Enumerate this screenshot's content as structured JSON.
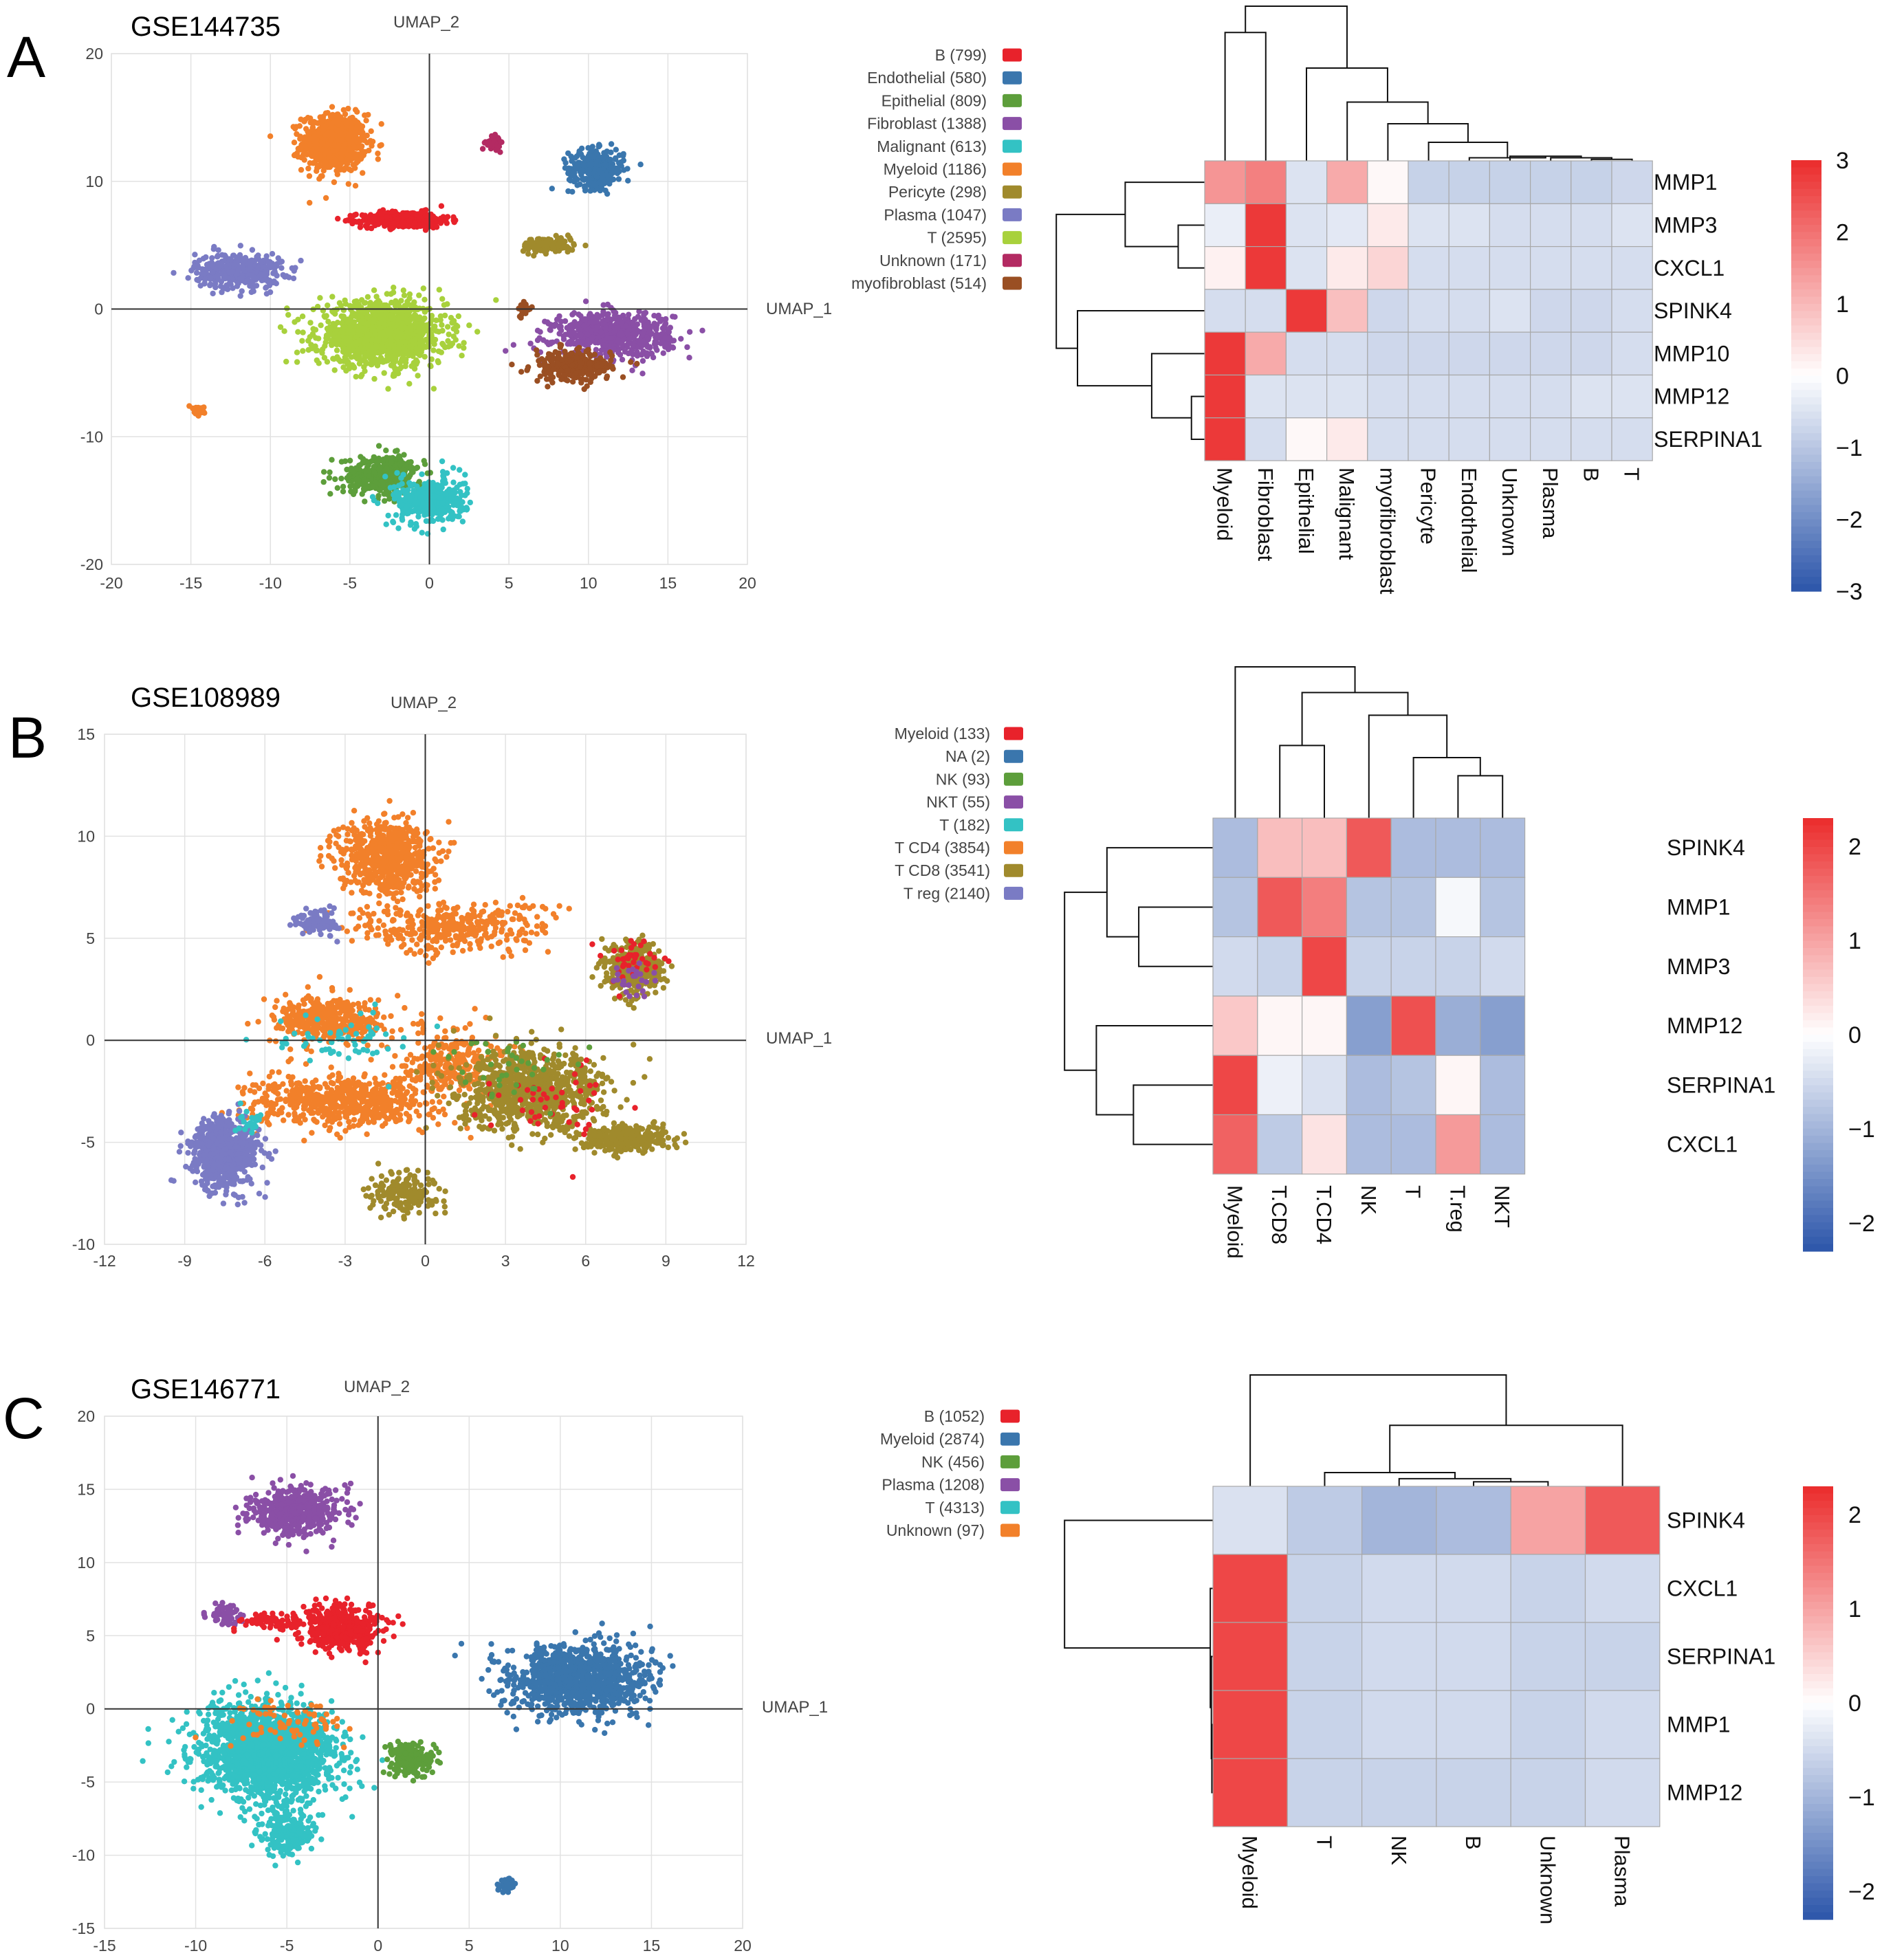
{
  "chart_data": [
    {
      "type": "scatter",
      "panel_letter": "A",
      "title": "GSE144735",
      "xlabel": "UMAP_1",
      "ylabel": "UMAP_2",
      "xlim": [
        -20,
        20
      ],
      "ylim": [
        -20,
        20
      ],
      "xticks": [
        "-20",
        "-15",
        "-10",
        "-5",
        "0",
        "5",
        "10",
        "15",
        "20"
      ],
      "yticks": [
        "20",
        "10",
        "0",
        "-10",
        "-20"
      ],
      "grid": true,
      "legend": [
        {
          "label": "B (799)",
          "color": "#e8222b"
        },
        {
          "label": "Endothelial (580)",
          "color": "#3a76ad"
        },
        {
          "label": "Epithelial (809)",
          "color": "#5d9e3b"
        },
        {
          "label": "Fibroblast (1388)",
          "color": "#8a4fa6"
        },
        {
          "label": "Malignant (613)",
          "color": "#33c2c4"
        },
        {
          "label": "Myeloid (1186)",
          "color": "#f2802a"
        },
        {
          "label": "Pericyte (298)",
          "color": "#a08a2c"
        },
        {
          "label": "Plasma (1047)",
          "color": "#7a7bc4"
        },
        {
          "label": "T (2595)",
          "color": "#a8d13c"
        },
        {
          "label": "Unknown (171)",
          "color": "#b32a62"
        },
        {
          "label": "myofibroblast (514)",
          "color": "#9a4f23"
        }
      ],
      "clusters": [
        {
          "c": 5,
          "x": -6,
          "y": 13,
          "sx": 1.6,
          "sy": 1.8,
          "n": 700
        },
        {
          "c": 0,
          "x": -1.5,
          "y": 7,
          "sx": 2.2,
          "sy": 0.5,
          "n": 450
        },
        {
          "c": 1,
          "x": 10.5,
          "y": 11,
          "sx": 1.4,
          "sy": 1.2,
          "n": 300
        },
        {
          "c": 9,
          "x": 4,
          "y": 13,
          "sx": 0.35,
          "sy": 0.4,
          "n": 60
        },
        {
          "c": 6,
          "x": 7.5,
          "y": 5,
          "sx": 1.3,
          "sy": 0.5,
          "n": 130
        },
        {
          "c": 7,
          "x": -12,
          "y": 3,
          "sx": 2.2,
          "sy": 1.1,
          "n": 380
        },
        {
          "c": 8,
          "x": -3,
          "y": -2,
          "sx": 3.2,
          "sy": 2.0,
          "n": 1200
        },
        {
          "c": 3,
          "x": 11.5,
          "y": -2,
          "sx": 3.0,
          "sy": 1.4,
          "n": 620
        },
        {
          "c": 10,
          "x": 9,
          "y": -4.5,
          "sx": 2.0,
          "sy": 1.0,
          "n": 260
        },
        {
          "c": 10,
          "x": 6,
          "y": 0,
          "sx": 0.3,
          "sy": 0.5,
          "n": 25
        },
        {
          "c": 2,
          "x": -3,
          "y": -13,
          "sx": 2.0,
          "sy": 1.2,
          "n": 400
        },
        {
          "c": 4,
          "x": 0,
          "y": -15,
          "sx": 1.8,
          "sy": 1.5,
          "n": 350
        },
        {
          "c": 5,
          "x": -14.5,
          "y": -8,
          "sx": 0.3,
          "sy": 0.3,
          "n": 25
        }
      ],
      "heatmap": {
        "rows": [
          "MMP1",
          "MMP3",
          "CXCL1",
          "SPINK4",
          "MMP10",
          "MMP12",
          "SERPINA1"
        ],
        "cols": [
          "Myeloid",
          "Fibroblast",
          "Epithelial",
          "Malignant",
          "myofibroblast",
          "Pericyte",
          "Endothelial",
          "Unknown",
          "Plasma",
          "B",
          "T"
        ],
        "values": [
          [
            1.5,
            1.8,
            -0.5,
            1.2,
            0.1,
            -0.8,
            -0.8,
            -0.8,
            -0.8,
            -0.8,
            -0.7
          ],
          [
            -0.3,
            2.8,
            -0.5,
            -0.4,
            0.3,
            -0.5,
            -0.5,
            -0.6,
            -0.6,
            -0.6,
            -0.5
          ],
          [
            0.2,
            2.8,
            -0.5,
            0.3,
            0.6,
            -0.6,
            -0.6,
            -0.6,
            -0.6,
            -0.6,
            -0.6
          ],
          [
            -0.6,
            -0.6,
            2.8,
            0.9,
            -0.7,
            -0.6,
            -0.6,
            -0.5,
            -0.7,
            -0.7,
            -0.6
          ],
          [
            2.8,
            1.2,
            -0.6,
            -0.6,
            -0.7,
            -0.7,
            -0.7,
            -0.7,
            -0.7,
            -0.7,
            -0.6
          ],
          [
            2.8,
            -0.5,
            -0.5,
            -0.5,
            -0.6,
            -0.6,
            -0.6,
            -0.6,
            -0.6,
            -0.5,
            -0.5
          ],
          [
            2.8,
            -0.6,
            0.1,
            0.3,
            -0.6,
            -0.6,
            -0.6,
            -0.6,
            -0.6,
            -0.6,
            -0.6
          ]
        ],
        "colorbar_ticks": [
          "3",
          "2",
          "1",
          "0",
          "−1",
          "−2",
          "−3"
        ],
        "vmin": -3,
        "vmax": 3
      }
    },
    {
      "type": "scatter",
      "panel_letter": "B",
      "title": "GSE108989",
      "xlabel": "UMAP_1",
      "ylabel": "UMAP_2",
      "xlim": [
        -12,
        12
      ],
      "ylim": [
        -10,
        15
      ],
      "xticks": [
        "-12",
        "-9",
        "-6",
        "-3",
        "0",
        "3",
        "6",
        "9",
        "12"
      ],
      "yticks": [
        "15",
        "10",
        "5",
        "0",
        "-5",
        "-10"
      ],
      "grid": true,
      "legend": [
        {
          "label": "Myeloid (133)",
          "color": "#e8222b"
        },
        {
          "label": "NA (2)",
          "color": "#3a76ad"
        },
        {
          "label": "NK (93)",
          "color": "#5d9e3b"
        },
        {
          "label": "NKT (55)",
          "color": "#8a4fa6"
        },
        {
          "label": "T (182)",
          "color": "#33c2c4"
        },
        {
          "label": "T CD4 (3854)",
          "color": "#f2802a"
        },
        {
          "label": "T CD8 (3541)",
          "color": "#a08a2c"
        },
        {
          "label": "T reg (2140)",
          "color": "#7a7bc4"
        }
      ],
      "clusters": [
        {
          "c": 5,
          "x": -1.5,
          "y": 9,
          "sx": 1.4,
          "sy": 1.5,
          "n": 650
        },
        {
          "c": 5,
          "x": 1,
          "y": 5.5,
          "sx": 3.0,
          "sy": 1.0,
          "n": 350
        },
        {
          "c": 5,
          "x": -3.5,
          "y": 1,
          "sx": 1.7,
          "sy": 0.9,
          "n": 400
        },
        {
          "c": 5,
          "x": -3,
          "y": -3,
          "sx": 2.8,
          "sy": 1.0,
          "n": 600
        },
        {
          "c": 5,
          "x": 1,
          "y": -1,
          "sx": 1.5,
          "sy": 1.3,
          "n": 260
        },
        {
          "c": 7,
          "x": -4,
          "y": 5.8,
          "sx": 0.6,
          "sy": 0.5,
          "n": 100
        },
        {
          "c": 7,
          "x": -7.5,
          "y": -5.5,
          "sx": 1.0,
          "sy": 1.4,
          "n": 700
        },
        {
          "c": 6,
          "x": 4,
          "y": -2.5,
          "sx": 2.2,
          "sy": 1.5,
          "n": 900
        },
        {
          "c": 6,
          "x": 7.8,
          "y": 3.5,
          "sx": 0.8,
          "sy": 1.0,
          "n": 450
        },
        {
          "c": 6,
          "x": 7.5,
          "y": -4.8,
          "sx": 1.2,
          "sy": 0.5,
          "n": 350
        },
        {
          "c": 6,
          "x": -0.8,
          "y": -7.5,
          "sx": 1.0,
          "sy": 0.8,
          "n": 180
        },
        {
          "c": 0,
          "x": 7.8,
          "y": 4,
          "sx": 0.8,
          "sy": 0.8,
          "n": 40
        },
        {
          "c": 0,
          "x": 5,
          "y": -3,
          "sx": 2.0,
          "sy": 1.5,
          "n": 50
        },
        {
          "c": 4,
          "x": -3,
          "y": 0,
          "sx": 2.0,
          "sy": 1.0,
          "n": 60
        },
        {
          "c": 4,
          "x": -6.5,
          "y": -4,
          "sx": 0.5,
          "sy": 0.5,
          "n": 25
        },
        {
          "c": 2,
          "x": 3,
          "y": -1,
          "sx": 2.0,
          "sy": 1.5,
          "n": 40
        },
        {
          "c": 3,
          "x": 7.8,
          "y": 3,
          "sx": 0.6,
          "sy": 0.6,
          "n": 25
        }
      ],
      "heatmap": {
        "rows": [
          "SPINK4",
          "MMP1",
          "MMP3",
          "MMP12",
          "SERPINA1",
          "CXCL1"
        ],
        "cols": [
          "Myeloid",
          "T.CD8",
          "T.CD4",
          "NK",
          "T",
          "T.reg",
          "NKT"
        ],
        "values": [
          [
            -0.9,
            0.7,
            0.7,
            1.8,
            -0.9,
            -0.9,
            -0.9
          ],
          [
            -0.8,
            1.8,
            1.4,
            -0.8,
            -0.8,
            -0.1,
            -0.8
          ],
          [
            -0.5,
            -0.6,
            2.0,
            -0.6,
            -0.6,
            -0.6,
            -0.5
          ],
          [
            0.6,
            0.1,
            0.1,
            -1.3,
            1.9,
            -1.1,
            -1.3
          ],
          [
            2.0,
            -0.2,
            -0.4,
            -0.9,
            -0.8,
            0.1,
            -0.9
          ],
          [
            1.7,
            -0.7,
            0.3,
            -0.9,
            -0.9,
            1.1,
            -0.9
          ]
        ],
        "colorbar_ticks": [
          "2",
          "1",
          "0",
          "−1",
          "−2"
        ],
        "vmin": -2.3,
        "vmax": 2.3
      }
    },
    {
      "type": "scatter",
      "panel_letter": "C",
      "title": "GSE146771",
      "xlabel": "UMAP_1",
      "ylabel": "UMAP_2",
      "xlim": [
        -15,
        20
      ],
      "ylim": [
        -15,
        20
      ],
      "xticks": [
        "-15",
        "-10",
        "-5",
        "0",
        "5",
        "10",
        "15",
        "20"
      ],
      "yticks": [
        "20",
        "15",
        "10",
        "5",
        "0",
        "-5",
        "-10",
        "-15"
      ],
      "grid": true,
      "legend": [
        {
          "label": "B (1052)",
          "color": "#e8222b"
        },
        {
          "label": "Myeloid (2874)",
          "color": "#3a76ad"
        },
        {
          "label": "NK (456)",
          "color": "#5d9e3b"
        },
        {
          "label": "Plasma (1208)",
          "color": "#8a4fa6"
        },
        {
          "label": "T (4313)",
          "color": "#33c2c4"
        },
        {
          "label": "Unknown (97)",
          "color": "#f2802a"
        }
      ],
      "clusters": [
        {
          "c": 3,
          "x": -4.5,
          "y": 13.5,
          "sx": 2.0,
          "sy": 1.3,
          "n": 500
        },
        {
          "c": 3,
          "x": -8.5,
          "y": 6.5,
          "sx": 0.7,
          "sy": 0.6,
          "n": 60
        },
        {
          "c": 0,
          "x": -2,
          "y": 5.5,
          "sx": 1.8,
          "sy": 1.2,
          "n": 450
        },
        {
          "c": 0,
          "x": -6,
          "y": 6,
          "sx": 1.2,
          "sy": 0.4,
          "n": 70
        },
        {
          "c": 1,
          "x": 11,
          "y": 2,
          "sx": 3.0,
          "sy": 1.9,
          "n": 1100
        },
        {
          "c": 1,
          "x": 7,
          "y": -12,
          "sx": 0.4,
          "sy": 0.4,
          "n": 40
        },
        {
          "c": 4,
          "x": -6,
          "y": -3,
          "sx": 3.0,
          "sy": 2.6,
          "n": 1800
        },
        {
          "c": 4,
          "x": -5,
          "y": -8.5,
          "sx": 1.2,
          "sy": 1.2,
          "n": 200
        },
        {
          "c": 2,
          "x": 1.8,
          "y": -3.5,
          "sx": 0.9,
          "sy": 0.9,
          "n": 200
        },
        {
          "c": 5,
          "x": -5,
          "y": -1,
          "sx": 3.0,
          "sy": 1.5,
          "n": 70
        }
      ],
      "heatmap": {
        "rows": [
          "SPINK4",
          "CXCL1",
          "SERPINA1",
          "MMP1",
          "MMP12"
        ],
        "cols": [
          "Myeloid",
          "T",
          "NK",
          "B",
          "Unknown",
          "Plasma"
        ],
        "values": [
          [
            -0.4,
            -0.7,
            -1.0,
            -0.9,
            1.0,
            1.8
          ],
          [
            2.0,
            -0.6,
            -0.5,
            -0.5,
            -0.6,
            -0.5
          ],
          [
            2.0,
            -0.6,
            -0.5,
            -0.5,
            -0.6,
            -0.6
          ],
          [
            2.0,
            -0.6,
            -0.5,
            -0.5,
            -0.6,
            -0.5
          ],
          [
            2.0,
            -0.6,
            -0.6,
            -0.6,
            -0.6,
            -0.5
          ]
        ],
        "colorbar_ticks": [
          "2",
          "1",
          "0",
          "−1",
          "−2"
        ],
        "vmin": -2.3,
        "vmax": 2.3
      }
    }
  ]
}
